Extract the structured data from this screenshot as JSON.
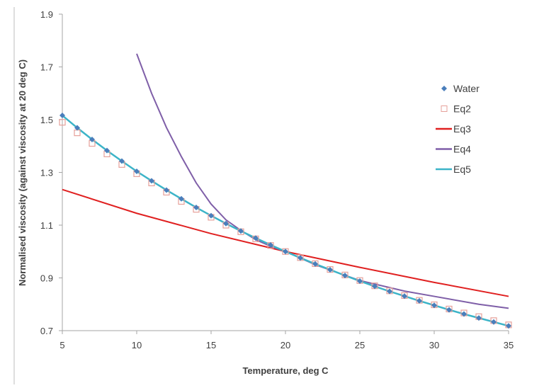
{
  "chart_data": {
    "type": "line",
    "title": "",
    "xlabel": "Temperature, deg C",
    "ylabel": "Normalised viscosity (against viscosity at 20 deg C)",
    "xlim": [
      5,
      35
    ],
    "ylim": [
      0.7,
      1.9
    ],
    "xticks": [
      5,
      10,
      15,
      20,
      25,
      30,
      35
    ],
    "yticks": [
      "0.7",
      "0.9",
      "1.1",
      "1.3",
      "1.5",
      "1.7",
      "1.9"
    ],
    "grid": false,
    "legend_position": "right",
    "series": [
      {
        "name": "Water",
        "style": "marker-diamond",
        "color": "#4a7ebb",
        "x": [
          5,
          6,
          7,
          8,
          9,
          10,
          11,
          12,
          13,
          14,
          15,
          16,
          17,
          18,
          19,
          20,
          21,
          22,
          23,
          24,
          25,
          26,
          27,
          28,
          29,
          30,
          31,
          32,
          33,
          34,
          35
        ],
        "y": [
          1.516,
          1.469,
          1.425,
          1.383,
          1.343,
          1.304,
          1.268,
          1.233,
          1.2,
          1.167,
          1.136,
          1.106,
          1.078,
          1.051,
          1.025,
          1.0,
          0.976,
          0.953,
          0.931,
          0.909,
          0.888,
          0.868,
          0.849,
          0.831,
          0.813,
          0.796,
          0.779,
          0.763,
          0.748,
          0.733,
          0.718
        ]
      },
      {
        "name": "Eq2",
        "style": "marker-square",
        "color": "#e6a09a",
        "x": [
          5,
          6,
          7,
          8,
          9,
          10,
          11,
          12,
          13,
          14,
          15,
          16,
          17,
          18,
          19,
          20,
          21,
          22,
          23,
          24,
          25,
          26,
          27,
          28,
          29,
          30,
          31,
          32,
          33,
          34,
          35
        ],
        "y": [
          1.49,
          1.45,
          1.41,
          1.37,
          1.33,
          1.295,
          1.26,
          1.225,
          1.19,
          1.16,
          1.13,
          1.1,
          1.075,
          1.048,
          1.023,
          1.0,
          0.977,
          0.954,
          0.932,
          0.911,
          0.89,
          0.87,
          0.851,
          0.833,
          0.815,
          0.798,
          0.782,
          0.767,
          0.753,
          0.738,
          0.722
        ]
      },
      {
        "name": "Eq3",
        "style": "line",
        "color": "#e02020",
        "x": [
          5,
          10,
          15,
          20,
          25,
          30,
          35
        ],
        "y": [
          1.235,
          1.145,
          1.068,
          1.0,
          0.94,
          0.883,
          0.83
        ]
      },
      {
        "name": "Eq4",
        "style": "line",
        "color": "#7f5fa8",
        "x": [
          10,
          11,
          12,
          13,
          14,
          15,
          16,
          17,
          18,
          19,
          20,
          22,
          25,
          28,
          30,
          33,
          35
        ],
        "y": [
          1.75,
          1.6,
          1.47,
          1.36,
          1.26,
          1.18,
          1.12,
          1.08,
          1.045,
          1.02,
          1.0,
          0.95,
          0.89,
          0.85,
          0.83,
          0.8,
          0.785
        ]
      },
      {
        "name": "Eq5",
        "style": "line",
        "color": "#3cb4c8",
        "x": [
          5,
          6,
          7,
          8,
          9,
          10,
          11,
          12,
          13,
          14,
          15,
          16,
          17,
          18,
          19,
          20,
          21,
          22,
          23,
          24,
          25,
          26,
          27,
          28,
          29,
          30,
          31,
          32,
          33,
          34,
          35
        ],
        "y": [
          1.516,
          1.469,
          1.425,
          1.383,
          1.343,
          1.304,
          1.268,
          1.233,
          1.2,
          1.167,
          1.136,
          1.106,
          1.078,
          1.051,
          1.025,
          1.0,
          0.976,
          0.953,
          0.931,
          0.909,
          0.888,
          0.868,
          0.849,
          0.831,
          0.813,
          0.796,
          0.779,
          0.763,
          0.748,
          0.733,
          0.718
        ]
      }
    ]
  }
}
